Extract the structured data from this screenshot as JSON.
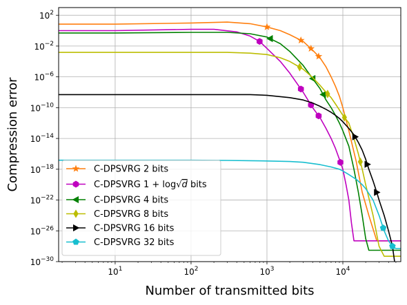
{
  "chart_data": {
    "type": "line",
    "xlabel": "Number of transmitted bits",
    "ylabel": "Compression error",
    "xscale": "log",
    "yscale": "log",
    "xlim": [
      1.8,
      58000
    ],
    "ylim": [
      1e-30,
      1000.0
    ],
    "x_ticks": [
      10,
      100,
      1000,
      10000
    ],
    "x_tick_labels": [
      {
        "base": "10",
        "exp": "1"
      },
      {
        "base": "10",
        "exp": "2"
      },
      {
        "base": "10",
        "exp": "3"
      },
      {
        "base": "10",
        "exp": "4"
      }
    ],
    "y_ticks": [
      100.0,
      0.01,
      1e-06,
      1e-10,
      1e-14,
      1e-18,
      1e-22,
      1e-26,
      1e-30
    ],
    "y_tick_labels": [
      {
        "base": "10",
        "exp": "2"
      },
      {
        "base": "10",
        "exp": "−2"
      },
      {
        "base": "10",
        "exp": "−6"
      },
      {
        "base": "10",
        "exp": "−10"
      },
      {
        "base": "10",
        "exp": "−14"
      },
      {
        "base": "10",
        "exp": "−18"
      },
      {
        "base": "10",
        "exp": "−22"
      },
      {
        "base": "10",
        "exp": "−26"
      },
      {
        "base": "10",
        "exp": "−30"
      }
    ],
    "grid": true,
    "legend_position": "lower-left",
    "series": [
      {
        "name": "C-DPSVRG 2 bits",
        "color": "#ff7f0e",
        "marker": "star",
        "x": [
          1.8,
          10,
          100,
          300,
          600,
          1000,
          1500,
          2000,
          3000,
          4000,
          5000,
          6000,
          7000,
          8000,
          9000,
          10000,
          12000,
          15000,
          18000,
          22000,
          28000,
          35000,
          58000
        ],
        "y": [
          7,
          7,
          10,
          13,
          8,
          3,
          1,
          0.3,
          0.04,
          0.003,
          0.0003,
          2e-05,
          1e-06,
          6e-08,
          3e-09,
          1e-10,
          1e-13,
          1e-17,
          1e-21,
          1e-24,
          5e-28,
          5e-28,
          5e-28
        ],
        "marker_x": [
          1000,
          2800,
          3800,
          4800
        ]
      },
      {
        "name": "C-DPSVRG 1+log√d bits",
        "label_parts": {
          "prefix": "C-DPSVRG 1 + log",
          "radical": "d",
          "suffix": " bits"
        },
        "color": "#bf00bf",
        "marker": "hexagon",
        "x": [
          1.8,
          10,
          100,
          200,
          400,
          600,
          800,
          1000,
          1500,
          2000,
          3000,
          4000,
          5000,
          6000,
          7000,
          8000,
          9000,
          10000,
          11000,
          12000,
          13000,
          14000,
          58000
        ],
        "y": [
          1,
          1,
          1.5,
          1.5,
          0.7,
          0.2,
          0.04,
          0.005,
          0.0001,
          3e-06,
          1e-08,
          1e-10,
          5e-12,
          2e-13,
          1e-14,
          5e-16,
          2e-17,
          1e-18,
          1e-20,
          1e-22,
          1e-25,
          5e-28,
          5e-28
        ],
        "marker_x": [
          800,
          2800,
          3800,
          4800,
          9300
        ]
      },
      {
        "name": "C-DPSVRG 4 bits",
        "color": "#008000",
        "marker": "triangle-left",
        "x": [
          1.8,
          10,
          100,
          300,
          600,
          1000,
          1500,
          2000,
          3000,
          4000,
          5000,
          6000,
          7000,
          8000,
          9000,
          10000,
          12000,
          14000,
          16000,
          18000,
          20000,
          22000,
          58000
        ],
        "y": [
          0.5,
          0.5,
          0.6,
          0.6,
          0.4,
          0.15,
          0.02,
          0.002,
          3e-05,
          6e-07,
          3e-08,
          1e-09,
          1e-10,
          1e-11,
          1e-12,
          1e-13,
          1e-15,
          1e-18,
          1e-21,
          1e-24,
          1e-27,
          3e-29,
          3e-29
        ],
        "marker_x": [
          1100,
          4000,
          5500
        ]
      },
      {
        "name": "C-DPSVRG 8 bits",
        "color": "#bcbd00",
        "marker": "diamond",
        "x": [
          1.8,
          10,
          100,
          300,
          600,
          1000,
          1500,
          2000,
          3000,
          4000,
          5000,
          6000,
          7000,
          8000,
          9000,
          10000,
          12000,
          14000,
          16000,
          18000,
          20000,
          25000,
          30000,
          35000,
          58000
        ],
        "y": [
          0.0015,
          0.0015,
          0.0015,
          0.0015,
          0.0012,
          0.0008,
          0.0003,
          0.0001,
          1e-05,
          8e-07,
          8e-08,
          1e-08,
          2e-09,
          3e-10,
          5e-11,
          1e-11,
          1e-12,
          1e-14,
          1e-16,
          1e-18,
          1e-20,
          1e-24,
          1e-28,
          5e-30,
          5e-30
        ],
        "marker_x": [
          2700,
          6300,
          10500,
          17000
        ]
      },
      {
        "name": "C-DPSVRG 16 bits",
        "color": "#000000",
        "marker": "triangle-right",
        "x": [
          1.8,
          10,
          100,
          300,
          600,
          1000,
          2000,
          3000,
          4000,
          5000,
          6000,
          7000,
          8000,
          9000,
          10000,
          12000,
          14000,
          16000,
          18000,
          20000,
          22000,
          25000,
          28000,
          30000,
          35000,
          40000,
          45000,
          48000
        ],
        "y": [
          5e-09,
          5e-09,
          5e-09,
          5e-09,
          5e-09,
          4e-09,
          2e-09,
          1e-09,
          4e-10,
          1.5e-10,
          6e-11,
          2.5e-11,
          1e-11,
          4e-12,
          1.5e-12,
          2e-13,
          3e-14,
          3e-15,
          3e-16,
          2e-17,
          1e-18,
          3e-20,
          1e-21,
          1e-22,
          1e-24,
          1e-26,
          1e-28,
          1e-30
        ],
        "marker_x": [
          14500,
          21000,
          28000
        ]
      },
      {
        "name": "C-DPSVRG 32 bits",
        "color": "#17becf",
        "marker": "pentagon",
        "x": [
          1.8,
          10,
          100,
          300,
          600,
          1000,
          2000,
          3000,
          5000,
          7000,
          9000,
          10000,
          12000,
          15000,
          18000,
          20000,
          25000,
          30000,
          35000,
          40000,
          45000,
          50000,
          58000
        ],
        "y": [
          1.5e-17,
          1.5e-17,
          1.5e-17,
          1.4e-17,
          1.3e-17,
          1.2e-17,
          1e-17,
          8e-18,
          4e-18,
          2e-18,
          1e-18,
          6e-19,
          2e-19,
          5e-20,
          1e-20,
          3e-21,
          1e-22,
          1e-24,
          1e-26,
          5e-28,
          1e-28,
          5e-29,
          5e-29
        ],
        "marker_x": [
          34000,
          45000
        ]
      }
    ]
  }
}
